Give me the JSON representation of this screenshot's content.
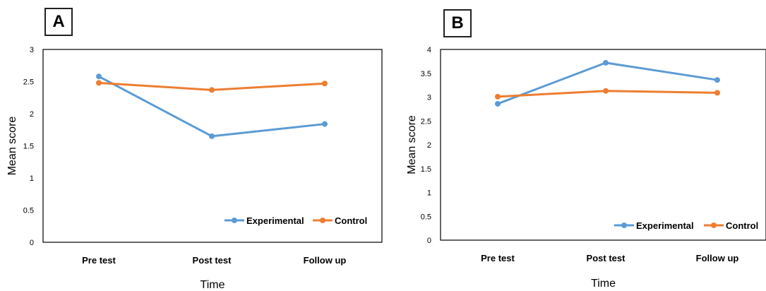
{
  "colors": {
    "experimental": "#5B9BD5",
    "control": "#ED7D31"
  },
  "chart_data": [
    {
      "type": "line",
      "panel_label": "A",
      "categories": [
        "Pre test",
        "Post test",
        "Follow up"
      ],
      "xlabel": "Time",
      "ylabel": "Mean score",
      "ylim": [
        0,
        3
      ],
      "yticks": [
        "0",
        "0.5",
        "1",
        "1.5",
        "2",
        "2.5",
        "3"
      ],
      "legend_position": "bottom-right",
      "series": [
        {
          "name": "Experimental",
          "values": [
            2.58,
            1.65,
            1.84
          ]
        },
        {
          "name": "Control",
          "values": [
            2.48,
            2.37,
            2.47
          ]
        }
      ]
    },
    {
      "type": "line",
      "panel_label": "B",
      "categories": [
        "Pre test",
        "Post test",
        "Follow up"
      ],
      "xlabel": "Time",
      "ylabel": "Mean score",
      "ylim": [
        0,
        4
      ],
      "yticks": [
        "0",
        "0.5",
        "1",
        "1.5",
        "2",
        "2.5",
        "3",
        "3.5",
        "4"
      ],
      "legend_position": "bottom-right",
      "series": [
        {
          "name": "Experimental",
          "values": [
            2.86,
            3.72,
            3.36
          ]
        },
        {
          "name": "Control",
          "values": [
            3.01,
            3.13,
            3.09
          ]
        }
      ]
    }
  ]
}
